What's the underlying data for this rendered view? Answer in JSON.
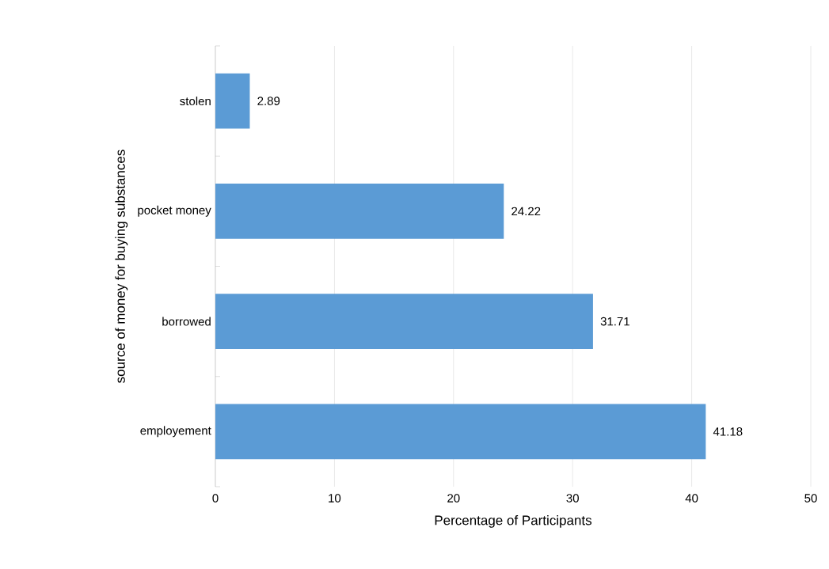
{
  "chart_data": {
    "type": "bar",
    "orientation": "horizontal",
    "xlabel": "Percentage of Participants",
    "ylabel": "source of money for buying substances",
    "categories": [
      "stolen",
      "pocket money",
      "borrowed",
      "employement"
    ],
    "values": [
      2.89,
      24.22,
      31.71,
      41.18
    ],
    "color": "#5b9bd5",
    "xlim": [
      0,
      50
    ],
    "xticks": [
      0,
      10,
      20,
      30,
      40,
      50
    ],
    "grid": "x",
    "data_labels": true
  }
}
